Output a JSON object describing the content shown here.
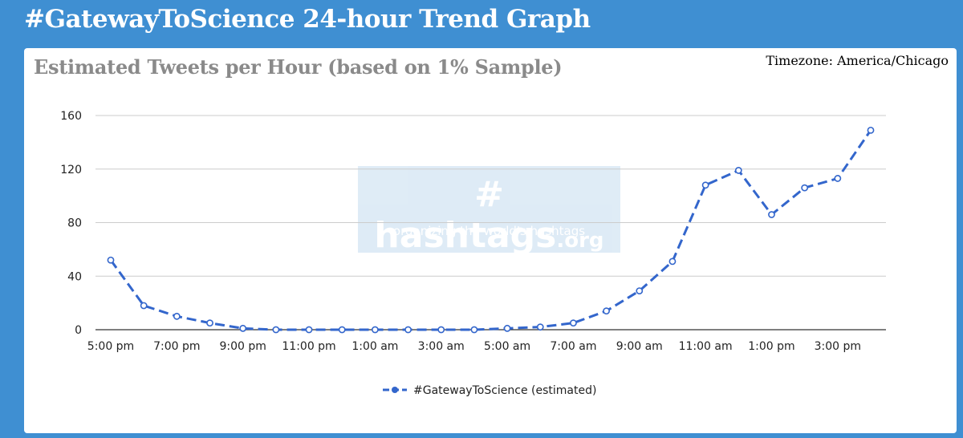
{
  "page_title": "#GatewayToScience 24-hour Trend Graph",
  "timezone": "Timezone: America/Chicago",
  "watermark": {
    "brand_main": "# hashtags",
    "brand_suffix": ".org",
    "tagline": "organizing the world's hashtags"
  },
  "colors": {
    "background": "#3f8fd2",
    "series": "#3366cc"
  },
  "chart_data": {
    "type": "line",
    "title": "Estimated Tweets per Hour (based on 1% Sample)",
    "xlabel": "",
    "ylabel": "",
    "ylim": [
      0,
      160
    ],
    "yticks": [
      0,
      40,
      80,
      120,
      160
    ],
    "x": [
      "5:00 pm",
      "6:00 pm",
      "7:00 pm",
      "8:00 pm",
      "9:00 pm",
      "10:00 pm",
      "11:00 pm",
      "12:00 am",
      "1:00 am",
      "2:00 am",
      "3:00 am",
      "4:00 am",
      "5:00 am",
      "6:00 am",
      "7:00 am",
      "8:00 am",
      "9:00 am",
      "10:00 am",
      "11:00 am",
      "12:00 pm",
      "1:00 pm",
      "2:00 pm",
      "3:00 pm",
      "4:00 pm"
    ],
    "xtick_labels": [
      "5:00 pm",
      "7:00 pm",
      "9:00 pm",
      "11:00 pm",
      "1:00 am",
      "3:00 am",
      "5:00 am",
      "7:00 am",
      "9:00 am",
      "11:00 am",
      "1:00 pm",
      "3:00 pm"
    ],
    "grid": true,
    "legend_position": "bottom",
    "series": [
      {
        "name": "#GatewayToScience (estimated)",
        "values": [
          52,
          18,
          10,
          5,
          1,
          0,
          0,
          0,
          0,
          0,
          0,
          0,
          1,
          2,
          5,
          14,
          29,
          51,
          108,
          119,
          86,
          106,
          113,
          149
        ]
      }
    ]
  }
}
